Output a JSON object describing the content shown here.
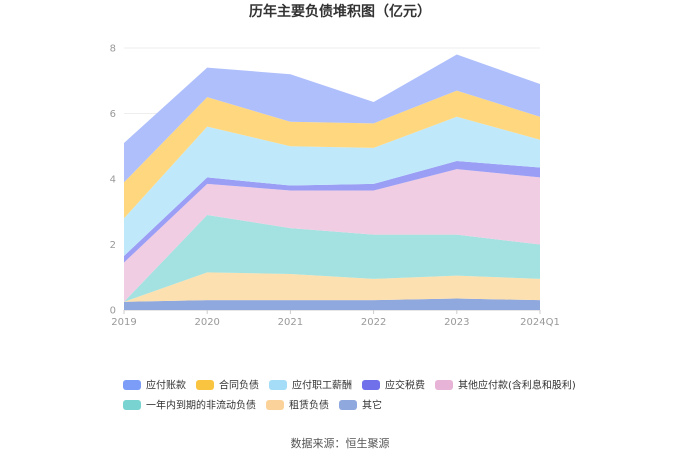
{
  "chart_data": {
    "type": "area",
    "stacked": true,
    "title": "历年主要负债堆积图（亿元）",
    "x": [
      "2019",
      "2020",
      "2021",
      "2022",
      "2023",
      "2024Q1"
    ],
    "ylim": [
      0,
      8
    ],
    "yticks": [
      "0",
      "2",
      "4",
      "6",
      "8"
    ],
    "grid": true,
    "legend_position": "bottom",
    "series": [
      {
        "name": "其它",
        "color": "#8fa8dd",
        "values": [
          0.25,
          0.3,
          0.3,
          0.3,
          0.35,
          0.3
        ]
      },
      {
        "name": "租赁负债",
        "color": "#fde0b0",
        "values": [
          0.0,
          0.85,
          0.8,
          0.65,
          0.7,
          0.65
        ]
      },
      {
        "name": "一年内到期的非流动负债",
        "color": "#a3e2e0",
        "values": [
          0.0,
          1.75,
          1.4,
          1.35,
          1.25,
          1.05
        ]
      },
      {
        "name": "其他应付款(含利息和股利)",
        "color": "#f0cde3",
        "values": [
          1.2,
          0.95,
          1.15,
          1.35,
          2.0,
          2.05
        ]
      },
      {
        "name": "应交税费",
        "color": "#9a9ef5",
        "values": [
          0.2,
          0.2,
          0.15,
          0.2,
          0.25,
          0.3
        ]
      },
      {
        "name": "应付职工薪酬",
        "color": "#bfe9fb",
        "values": [
          1.15,
          1.55,
          1.2,
          1.1,
          1.35,
          0.85
        ]
      },
      {
        "name": "合同负债",
        "color": "#ffd77f",
        "values": [
          1.1,
          0.9,
          0.75,
          0.75,
          0.8,
          0.7
        ]
      },
      {
        "name": "应付账款",
        "color": "#aebffc",
        "values": [
          1.2,
          0.9,
          1.45,
          0.65,
          1.1,
          1.0
        ]
      }
    ],
    "legend": [
      {
        "name": "应付账款",
        "color": "#7b9cf7"
      },
      {
        "name": "合同负债",
        "color": "#f9c440"
      },
      {
        "name": "应付职工薪酬",
        "color": "#a5dcf7"
      },
      {
        "name": "应交税费",
        "color": "#6f70ea"
      },
      {
        "name": "其他应付款(含利息和股利)",
        "color": "#e7b3d6"
      },
      {
        "name": "一年内到期的非流动负债",
        "color": "#79d3d0"
      },
      {
        "name": "租赁负债",
        "color": "#fbd39a"
      },
      {
        "name": "其它",
        "color": "#8fa8dd"
      }
    ]
  },
  "source": "数据来源：恒生聚源"
}
